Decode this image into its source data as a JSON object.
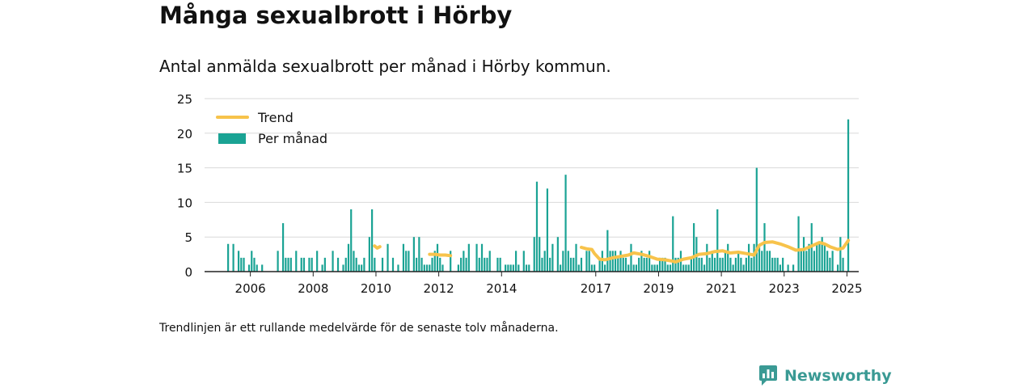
{
  "title": "Många sexualbrott i Hörby",
  "subtitle": "Antal anmälda sexualbrott per månad i Hörby kommun.",
  "footnote": "Trendlinjen är ett rullande medelvärde för de senaste tolv månaderna.",
  "brand": "Newsworthy",
  "colors": {
    "bar": "#1aa394",
    "trend": "#f7c34b",
    "grid": "#d9d9d9",
    "axis": "#222222",
    "brand": "#3a9a94"
  },
  "chart_data": {
    "type": "bar",
    "title": "Många sexualbrott i Hörby",
    "subtitle": "Antal anmälda sexualbrott per månad i Hörby kommun.",
    "xlabel": "",
    "ylabel": "",
    "ylim": [
      0,
      25
    ],
    "yticks": [
      0,
      5,
      10,
      15,
      20,
      25
    ],
    "xticks": [
      "2006",
      "2008",
      "2010",
      "2012",
      "2014",
      "2017",
      "2019",
      "2021",
      "2023",
      "2025"
    ],
    "xlim": [
      "2005-01",
      "2025-11"
    ],
    "grid": true,
    "legend": {
      "position": "top-left",
      "items": [
        "Trend",
        "Per månad"
      ]
    },
    "series": [
      {
        "name": "Per månad",
        "type": "bar",
        "points": [
          [
            "2005-10",
            4
          ],
          [
            "2005-12",
            4
          ],
          [
            "2006-02",
            3
          ],
          [
            "2006-03",
            2
          ],
          [
            "2006-04",
            2
          ],
          [
            "2006-06",
            1
          ],
          [
            "2006-07",
            3
          ],
          [
            "2006-08",
            2
          ],
          [
            "2006-09",
            1
          ],
          [
            "2006-11",
            1
          ],
          [
            "2007-05",
            3
          ],
          [
            "2007-07",
            7
          ],
          [
            "2007-08",
            2
          ],
          [
            "2007-09",
            2
          ],
          [
            "2007-10",
            2
          ],
          [
            "2007-12",
            3
          ],
          [
            "2008-02",
            2
          ],
          [
            "2008-03",
            2
          ],
          [
            "2008-05",
            2
          ],
          [
            "2008-06",
            2
          ],
          [
            "2008-08",
            3
          ],
          [
            "2008-10",
            1
          ],
          [
            "2008-11",
            2
          ],
          [
            "2009-02",
            3
          ],
          [
            "2009-04",
            2
          ],
          [
            "2009-06",
            1
          ],
          [
            "2009-07",
            2
          ],
          [
            "2009-08",
            4
          ],
          [
            "2009-09",
            9
          ],
          [
            "2009-10",
            3
          ],
          [
            "2009-11",
            2
          ],
          [
            "2009-12",
            1
          ],
          [
            "2010-01",
            1
          ],
          [
            "2010-02",
            2
          ],
          [
            "2010-04",
            5
          ],
          [
            "2010-05",
            9
          ],
          [
            "2010-06",
            2
          ],
          [
            "2010-09",
            2
          ],
          [
            "2010-11",
            4
          ],
          [
            "2011-01",
            2
          ],
          [
            "2011-03",
            1
          ],
          [
            "2011-05",
            4
          ],
          [
            "2011-06",
            3
          ],
          [
            "2011-07",
            3
          ],
          [
            "2011-09",
            5
          ],
          [
            "2011-10",
            2
          ],
          [
            "2011-11",
            5
          ],
          [
            "2011-12",
            2
          ],
          [
            "2012-01",
            1
          ],
          [
            "2012-02",
            1
          ],
          [
            "2012-03",
            1
          ],
          [
            "2012-04",
            2
          ],
          [
            "2012-05",
            3
          ],
          [
            "2012-06",
            4
          ],
          [
            "2012-07",
            2
          ],
          [
            "2012-08",
            1
          ],
          [
            "2012-11",
            3
          ],
          [
            "2013-02",
            1
          ],
          [
            "2013-03",
            2
          ],
          [
            "2013-04",
            3
          ],
          [
            "2013-05",
            2
          ],
          [
            "2013-06",
            4
          ],
          [
            "2013-09",
            4
          ],
          [
            "2013-10",
            2
          ],
          [
            "2013-11",
            4
          ],
          [
            "2013-12",
            2
          ],
          [
            "2014-01",
            2
          ],
          [
            "2014-02",
            3
          ],
          [
            "2014-05",
            2
          ],
          [
            "2014-06",
            2
          ],
          [
            "2014-08",
            1
          ],
          [
            "2014-09",
            1
          ],
          [
            "2014-10",
            1
          ],
          [
            "2014-11",
            1
          ],
          [
            "2014-12",
            3
          ],
          [
            "2015-01",
            1
          ],
          [
            "2015-03",
            3
          ],
          [
            "2015-04",
            1
          ],
          [
            "2015-05",
            1
          ],
          [
            "2015-07",
            5
          ],
          [
            "2015-08",
            13
          ],
          [
            "2015-09",
            5
          ],
          [
            "2015-10",
            2
          ],
          [
            "2015-11",
            3
          ],
          [
            "2015-12",
            12
          ],
          [
            "2016-01",
            2
          ],
          [
            "2016-02",
            4
          ],
          [
            "2016-04",
            5
          ],
          [
            "2016-05",
            1
          ],
          [
            "2016-06",
            3
          ],
          [
            "2016-07",
            14
          ],
          [
            "2016-08",
            3
          ],
          [
            "2016-09",
            2
          ],
          [
            "2016-10",
            2
          ],
          [
            "2016-11",
            4
          ],
          [
            "2016-12",
            1
          ],
          [
            "2017-01",
            2
          ],
          [
            "2017-03",
            3
          ],
          [
            "2017-04",
            3
          ],
          [
            "2017-05",
            1
          ],
          [
            "2017-06",
            1
          ],
          [
            "2017-08",
            2
          ],
          [
            "2017-09",
            3
          ],
          [
            "2017-10",
            1
          ],
          [
            "2017-11",
            6
          ],
          [
            "2017-12",
            3
          ],
          [
            "2018-01",
            3
          ],
          [
            "2018-02",
            3
          ],
          [
            "2018-03",
            2
          ],
          [
            "2018-04",
            3
          ],
          [
            "2018-05",
            2
          ],
          [
            "2018-06",
            2
          ],
          [
            "2018-07",
            1
          ],
          [
            "2018-08",
            4
          ],
          [
            "2018-09",
            1
          ],
          [
            "2018-10",
            1
          ],
          [
            "2018-11",
            2
          ],
          [
            "2018-12",
            3
          ],
          [
            "2019-01",
            2
          ],
          [
            "2019-02",
            2
          ],
          [
            "2019-03",
            3
          ],
          [
            "2019-04",
            1
          ],
          [
            "2019-05",
            1
          ],
          [
            "2019-06",
            1
          ],
          [
            "2019-07",
            2
          ],
          [
            "2019-08",
            2
          ],
          [
            "2019-09",
            2
          ],
          [
            "2019-10",
            1
          ],
          [
            "2019-11",
            1
          ],
          [
            "2019-12",
            8
          ],
          [
            "2020-01",
            2
          ],
          [
            "2020-02",
            2
          ],
          [
            "2020-03",
            3
          ],
          [
            "2020-04",
            1
          ],
          [
            "2020-05",
            1
          ],
          [
            "2020-06",
            1
          ],
          [
            "2020-07",
            2
          ],
          [
            "2020-08",
            7
          ],
          [
            "2020-09",
            5
          ],
          [
            "2020-10",
            2
          ],
          [
            "2020-11",
            2
          ],
          [
            "2020-12",
            1
          ],
          [
            "2021-01",
            4
          ],
          [
            "2021-02",
            2
          ],
          [
            "2021-03",
            3
          ],
          [
            "2021-04",
            2
          ],
          [
            "2021-05",
            9
          ],
          [
            "2021-06",
            2
          ],
          [
            "2021-07",
            2
          ],
          [
            "2021-08",
            3
          ],
          [
            "2021-09",
            4
          ],
          [
            "2021-10",
            2
          ],
          [
            "2021-11",
            1
          ],
          [
            "2021-12",
            2
          ],
          [
            "2022-01",
            3
          ],
          [
            "2022-02",
            2
          ],
          [
            "2022-03",
            1
          ],
          [
            "2022-04",
            2
          ],
          [
            "2022-05",
            4
          ],
          [
            "2022-06",
            2
          ],
          [
            "2022-07",
            4
          ],
          [
            "2022-08",
            15
          ],
          [
            "2022-09",
            4
          ],
          [
            "2022-10",
            3
          ],
          [
            "2022-11",
            7
          ],
          [
            "2022-12",
            3
          ],
          [
            "2023-01",
            3
          ],
          [
            "2023-02",
            2
          ],
          [
            "2023-03",
            2
          ],
          [
            "2023-04",
            2
          ],
          [
            "2023-05",
            1
          ],
          [
            "2023-06",
            2
          ],
          [
            "2023-08",
            1
          ],
          [
            "2023-10",
            1
          ],
          [
            "2023-12",
            8
          ],
          [
            "2024-01",
            3
          ],
          [
            "2024-02",
            5
          ],
          [
            "2024-03",
            3
          ],
          [
            "2024-04",
            4
          ],
          [
            "2024-05",
            7
          ],
          [
            "2024-06",
            3
          ],
          [
            "2024-07",
            4
          ],
          [
            "2024-08",
            4
          ],
          [
            "2024-09",
            5
          ],
          [
            "2024-10",
            4
          ],
          [
            "2024-11",
            3
          ],
          [
            "2024-12",
            2
          ],
          [
            "2025-01",
            3
          ],
          [
            "2025-03",
            1
          ],
          [
            "2025-04",
            5
          ],
          [
            "2025-05",
            2
          ],
          [
            "2025-07",
            22
          ]
        ]
      },
      {
        "name": "Trend",
        "type": "line",
        "segments": [
          [
            [
              "2010-06",
              3.7
            ],
            [
              "2010-07",
              3.4
            ],
            [
              "2010-08",
              3.6
            ]
          ],
          [
            [
              "2012-03",
              2.5
            ],
            [
              "2012-05",
              2.5
            ],
            [
              "2012-07",
              2.4
            ],
            [
              "2012-09",
              2.4
            ],
            [
              "2012-11",
              2.3
            ]
          ],
          [
            [
              "2017-01",
              3.5
            ],
            [
              "2017-03",
              3.3
            ],
            [
              "2017-05",
              3.2
            ],
            [
              "2017-06",
              2.6
            ],
            [
              "2017-08",
              1.8
            ],
            [
              "2017-10",
              1.7
            ],
            [
              "2018-01",
              2.0
            ],
            [
              "2018-04",
              2.2
            ],
            [
              "2018-07",
              2.4
            ],
            [
              "2018-09",
              2.7
            ],
            [
              "2018-12",
              2.5
            ],
            [
              "2019-03",
              2.2
            ],
            [
              "2019-06",
              1.8
            ],
            [
              "2019-09",
              1.7
            ],
            [
              "2019-12",
              1.5
            ],
            [
              "2020-01",
              1.4
            ],
            [
              "2020-04",
              1.8
            ],
            [
              "2020-07",
              2.0
            ],
            [
              "2020-10",
              2.5
            ],
            [
              "2021-01",
              2.6
            ],
            [
              "2021-04",
              2.9
            ],
            [
              "2021-07",
              3.0
            ],
            [
              "2021-10",
              2.7
            ],
            [
              "2022-01",
              2.8
            ],
            [
              "2022-04",
              2.6
            ],
            [
              "2022-07",
              2.4
            ],
            [
              "2022-09",
              3.8
            ],
            [
              "2022-11",
              4.2
            ],
            [
              "2023-02",
              4.3
            ],
            [
              "2023-05",
              4.0
            ],
            [
              "2023-08",
              3.6
            ],
            [
              "2023-11",
              3.1
            ],
            [
              "2024-02",
              3.2
            ],
            [
              "2024-05",
              3.7
            ],
            [
              "2024-08",
              4.2
            ],
            [
              "2024-10",
              4.0
            ],
            [
              "2024-12",
              3.6
            ],
            [
              "2025-03",
              3.2
            ],
            [
              "2025-05",
              3.4
            ],
            [
              "2025-07",
              4.5
            ]
          ]
        ]
      }
    ]
  }
}
